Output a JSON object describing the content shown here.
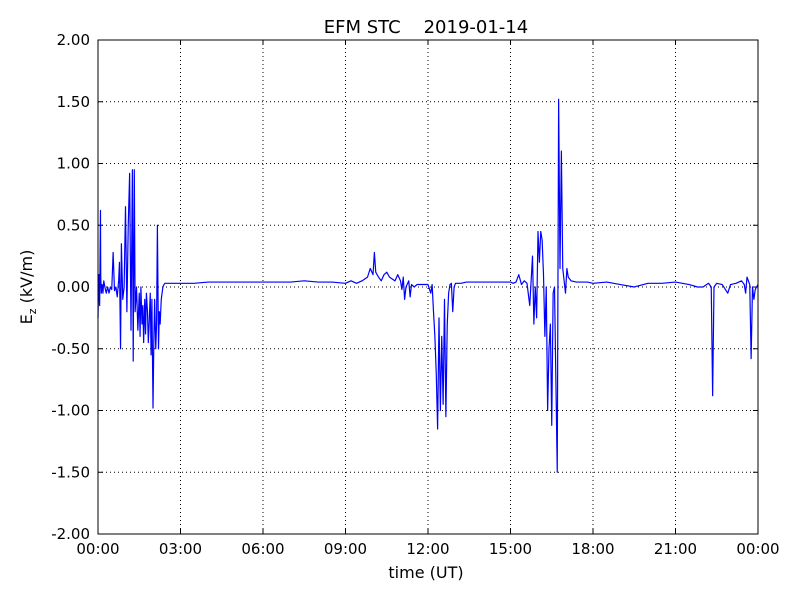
{
  "chart_data": {
    "type": "line",
    "title": "EFM STC    2019-01-14",
    "xlabel": "time (UT)",
    "ylabel": "E",
    "ylabel_sub": "z",
    "ylabel_units": " (kV/m)",
    "xlim": [
      0,
      24
    ],
    "ylim": [
      -2,
      2
    ],
    "grid": true,
    "x_ticks": [
      0,
      3,
      6,
      9,
      12,
      15,
      18,
      21,
      24
    ],
    "x_tick_labels": [
      "00:00",
      "03:00",
      "06:00",
      "09:00",
      "12:00",
      "15:00",
      "18:00",
      "21:00",
      "00:00"
    ],
    "y_ticks": [
      -2,
      -1.5,
      -1,
      -0.5,
      0,
      0.5,
      1,
      1.5,
      2
    ],
    "y_tick_labels": [
      "-2.00",
      "-1.50",
      "-1.00",
      "-0.50",
      "0.00",
      "0.50",
      "1.00",
      "1.50",
      "2.00"
    ],
    "line_color": "#0000ff",
    "series": [
      {
        "x": [
          0.0,
          0.03,
          0.06,
          0.09,
          0.1,
          0.12,
          0.15,
          0.18,
          0.21,
          0.25,
          0.3,
          0.35,
          0.4,
          0.45,
          0.5,
          0.55,
          0.6,
          0.65,
          0.7,
          0.75,
          0.78,
          0.82,
          0.85,
          0.9,
          0.95,
          1.0,
          1.05,
          1.1,
          1.15,
          1.2,
          1.25,
          1.28,
          1.32,
          1.35,
          1.4,
          1.45,
          1.5,
          1.53,
          1.56,
          1.6,
          1.63,
          1.66,
          1.7,
          1.73,
          1.76,
          1.8,
          1.83,
          1.86,
          1.9,
          1.93,
          1.96,
          2.0,
          2.03,
          2.06,
          2.1,
          2.13,
          2.16,
          2.2,
          2.23,
          2.26,
          2.3,
          2.33,
          2.36,
          2.4,
          2.43,
          2.46,
          2.5,
          2.53,
          2.56,
          2.6,
          2.63,
          2.66,
          2.7,
          2.73,
          2.76,
          2.8,
          2.85,
          2.9,
          3.0,
          3.2,
          3.5,
          4.0,
          4.5,
          5.0,
          5.5,
          6.0,
          6.5,
          7.0,
          7.5,
          8.0,
          8.5,
          9.0,
          9.2,
          9.4,
          9.6,
          9.8,
          9.9,
          10.0,
          10.05,
          10.1,
          10.2,
          10.3,
          10.4,
          10.5,
          10.6,
          10.8,
          10.9,
          11.0,
          11.05,
          11.1,
          11.15,
          11.2,
          11.3,
          11.35,
          11.4,
          11.5,
          11.6,
          11.8,
          12.0,
          12.1,
          12.15,
          12.2,
          12.25,
          12.3,
          12.35,
          12.4,
          12.45,
          12.5,
          12.55,
          12.6,
          12.65,
          12.7,
          12.75,
          12.8,
          12.85,
          12.9,
          12.95,
          13.0,
          13.1,
          13.2,
          13.4,
          13.6,
          14.0,
          14.5,
          15.0,
          15.1,
          15.2,
          15.3,
          15.4,
          15.5,
          15.6,
          15.7,
          15.8,
          15.85,
          15.9,
          15.95,
          16.0,
          16.05,
          16.1,
          16.15,
          16.2,
          16.25,
          16.3,
          16.35,
          16.4,
          16.45,
          16.5,
          16.55,
          16.6,
          16.7,
          16.75,
          16.8,
          16.85,
          16.9,
          16.95,
          17.0,
          17.05,
          17.1,
          17.2,
          17.4,
          17.6,
          17.8,
          18.0,
          18.5,
          19.0,
          19.5,
          20.0,
          20.5,
          21.0,
          21.5,
          21.8,
          22.0,
          22.2,
          22.3,
          22.35,
          22.4,
          22.5,
          22.7,
          22.9,
          23.0,
          23.2,
          23.4,
          23.5,
          23.55,
          23.6,
          23.7,
          23.75,
          23.8,
          23.85,
          23.9,
          24.0
        ],
        "y": [
          -0.25,
          0.1,
          -0.15,
          0.62,
          0.08,
          -0.05,
          0.02,
          -0.05,
          0.05,
          0.0,
          -0.05,
          0.0,
          -0.05,
          0.0,
          -0.02,
          0.28,
          -0.03,
          0.0,
          -0.08,
          0.05,
          0.2,
          -0.5,
          0.35,
          -0.1,
          0.0,
          0.65,
          -0.2,
          0.5,
          0.92,
          -0.35,
          0.95,
          -0.6,
          0.95,
          -0.2,
          0.0,
          -0.35,
          -0.05,
          -0.4,
          0.0,
          -0.3,
          -0.15,
          -0.45,
          -0.1,
          -0.38,
          -0.05,
          -0.2,
          -0.45,
          -0.3,
          -0.05,
          -0.55,
          -0.1,
          -0.98,
          -0.45,
          -0.1,
          -0.5,
          -0.3,
          0.5,
          -0.5,
          -0.2,
          -0.3,
          -0.1,
          -0.05,
          0.0,
          0.02,
          0.03,
          0.03,
          0.03,
          0.03,
          0.03,
          0.03,
          0.03,
          0.03,
          0.03,
          0.03,
          0.03,
          0.03,
          0.03,
          0.03,
          0.03,
          0.03,
          0.03,
          0.04,
          0.04,
          0.04,
          0.04,
          0.04,
          0.04,
          0.04,
          0.05,
          0.04,
          0.04,
          0.03,
          0.05,
          0.03,
          0.05,
          0.08,
          0.15,
          0.1,
          0.28,
          0.12,
          0.08,
          0.05,
          0.1,
          0.12,
          0.08,
          0.05,
          0.1,
          0.05,
          -0.02,
          0.08,
          -0.1,
          0.0,
          0.05,
          -0.08,
          0.02,
          0.0,
          0.02,
          0.02,
          0.02,
          -0.05,
          0.02,
          -0.2,
          -0.4,
          -0.7,
          -1.15,
          -0.25,
          -1.0,
          -0.4,
          -0.95,
          -0.1,
          -1.05,
          -0.3,
          -0.05,
          0.02,
          0.03,
          -0.2,
          0.0,
          0.03,
          0.03,
          0.03,
          0.04,
          0.04,
          0.04,
          0.04,
          0.04,
          0.03,
          0.04,
          0.1,
          0.02,
          0.05,
          0.03,
          -0.15,
          0.25,
          -0.3,
          0.0,
          -0.25,
          0.45,
          0.2,
          0.45,
          0.38,
          0.1,
          -0.4,
          0.0,
          -1.0,
          -0.5,
          -0.3,
          -1.12,
          -0.05,
          0.0,
          -1.5,
          1.52,
          0.15,
          1.1,
          0.15,
          0.05,
          -0.05,
          0.15,
          0.08,
          0.05,
          0.04,
          0.04,
          0.04,
          0.03,
          0.04,
          0.02,
          0.0,
          0.03,
          0.03,
          0.04,
          0.02,
          0.0,
          0.0,
          0.03,
          0.0,
          -0.88,
          0.0,
          0.03,
          0.02,
          -0.05,
          0.02,
          0.03,
          0.05,
          0.02,
          -0.05,
          0.08,
          0.02,
          -0.58,
          0.0,
          -0.1,
          -0.02,
          0.02
        ]
      }
    ]
  }
}
